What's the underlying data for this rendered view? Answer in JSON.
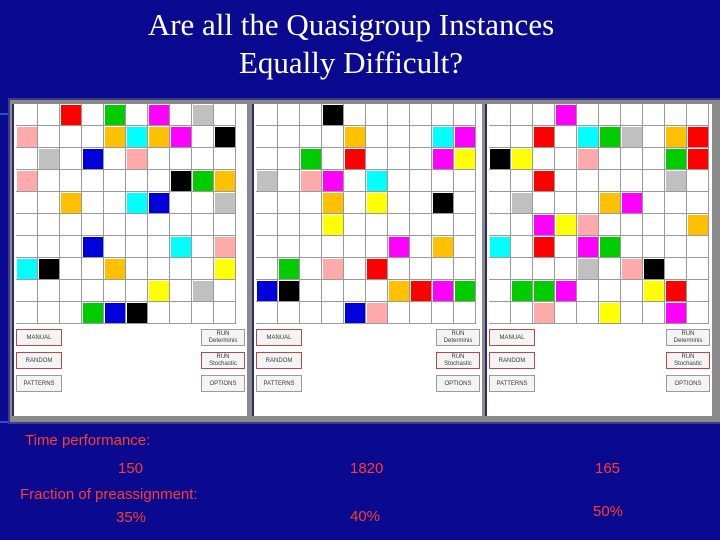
{
  "title": {
    "line1": "Are all the Quasigroup Instances",
    "line2": "Equally Difficult?"
  },
  "panels": [
    {
      "buttons": {
        "manual": "MANUAL",
        "random": "RANDOM",
        "patterns": "PATTERNS",
        "run_det": "RUN\nDeterminis",
        "run_sto": "RUN\nStochastic",
        "options": "OPTIONS"
      },
      "cells": [
        [
          0,
          2,
          "#ff0000"
        ],
        [
          0,
          4,
          "#00cc00"
        ],
        [
          0,
          6,
          "#ff00ff"
        ],
        [
          0,
          8,
          "#c0c0c0"
        ],
        [
          1,
          0,
          "#ffaaaa"
        ],
        [
          1,
          4,
          "#ffc000"
        ],
        [
          1,
          5,
          "#00ffff"
        ],
        [
          1,
          6,
          "#ffc000"
        ],
        [
          1,
          7,
          "#ff00ff"
        ],
        [
          1,
          9,
          "#000000"
        ],
        [
          2,
          1,
          "#c0c0c0"
        ],
        [
          2,
          3,
          "#0000dd"
        ],
        [
          2,
          5,
          "#ffaaaa"
        ],
        [
          3,
          0,
          "#ffaaaa"
        ],
        [
          3,
          7,
          "#000000"
        ],
        [
          3,
          8,
          "#00cc00"
        ],
        [
          3,
          9,
          "#ffc000"
        ],
        [
          4,
          2,
          "#ffc000"
        ],
        [
          4,
          5,
          "#00ffff"
        ],
        [
          4,
          6,
          "#0000dd"
        ],
        [
          4,
          9,
          "#c0c0c0"
        ],
        [
          6,
          3,
          "#0000dd"
        ],
        [
          6,
          7,
          "#00ffff"
        ],
        [
          6,
          9,
          "#ffaaaa"
        ],
        [
          7,
          0,
          "#00ffff"
        ],
        [
          7,
          1,
          "#000000"
        ],
        [
          7,
          4,
          "#ffc000"
        ],
        [
          7,
          9,
          "#ffff00"
        ],
        [
          8,
          6,
          "#ffff00"
        ],
        [
          8,
          8,
          "#c0c0c0"
        ],
        [
          9,
          3,
          "#00cc00"
        ],
        [
          9,
          4,
          "#0000dd"
        ],
        [
          9,
          5,
          "#000000"
        ]
      ]
    },
    {
      "buttons": {
        "manual": "MANUAL",
        "random": "RANDOM",
        "patterns": "PATTERNS",
        "run_det": "RUN\nDeterminis",
        "run_sto": "RUN\nStochastic",
        "options": "OPTIONS"
      },
      "cells": [
        [
          0,
          3,
          "#000000"
        ],
        [
          1,
          4,
          "#ffc000"
        ],
        [
          1,
          8,
          "#00ffff"
        ],
        [
          1,
          9,
          "#ff00ff"
        ],
        [
          2,
          2,
          "#00cc00"
        ],
        [
          2,
          4,
          "#ff0000"
        ],
        [
          2,
          8,
          "#ff00ff"
        ],
        [
          2,
          9,
          "#ffff00"
        ],
        [
          3,
          0,
          "#c0c0c0"
        ],
        [
          3,
          2,
          "#ffaaaa"
        ],
        [
          3,
          3,
          "#ff00ff"
        ],
        [
          3,
          5,
          "#00ffff"
        ],
        [
          4,
          3,
          "#ffc000"
        ],
        [
          4,
          5,
          "#ffff00"
        ],
        [
          4,
          8,
          "#000000"
        ],
        [
          5,
          3,
          "#ffff00"
        ],
        [
          6,
          6,
          "#ff00ff"
        ],
        [
          6,
          8,
          "#ffc000"
        ],
        [
          7,
          1,
          "#00cc00"
        ],
        [
          7,
          3,
          "#ffaaaa"
        ],
        [
          7,
          5,
          "#ff0000"
        ],
        [
          8,
          0,
          "#0000dd"
        ],
        [
          8,
          1,
          "#000000"
        ],
        [
          8,
          6,
          "#ffc000"
        ],
        [
          8,
          7,
          "#ff0000"
        ],
        [
          8,
          8,
          "#ff00ff"
        ],
        [
          8,
          9,
          "#00cc00"
        ],
        [
          9,
          4,
          "#0000dd"
        ],
        [
          9,
          5,
          "#ffaaaa"
        ]
      ]
    },
    {
      "buttons": {
        "manual": "MANUAL",
        "random": "RANDOM",
        "patterns": "PATTERNS",
        "run_det": "RUN\nDeterminis",
        "run_sto": "RUN\nStochastic",
        "options": "OPTIONS"
      },
      "cells": [
        [
          0,
          3,
          "#ff00ff"
        ],
        [
          1,
          2,
          "#ff0000"
        ],
        [
          1,
          4,
          "#00ffff"
        ],
        [
          1,
          5,
          "#00cc00"
        ],
        [
          1,
          6,
          "#c0c0c0"
        ],
        [
          1,
          8,
          "#ffc000"
        ],
        [
          1,
          9,
          "#ff0000"
        ],
        [
          2,
          0,
          "#000000"
        ],
        [
          2,
          1,
          "#ffff00"
        ],
        [
          2,
          4,
          "#ffaaaa"
        ],
        [
          2,
          8,
          "#00cc00"
        ],
        [
          2,
          9,
          "#ff0000"
        ],
        [
          3,
          2,
          "#ff0000"
        ],
        [
          3,
          8,
          "#c0c0c0"
        ],
        [
          4,
          1,
          "#c0c0c0"
        ],
        [
          4,
          5,
          "#ffc000"
        ],
        [
          4,
          6,
          "#ff00ff"
        ],
        [
          5,
          2,
          "#ff00ff"
        ],
        [
          5,
          3,
          "#ffff00"
        ],
        [
          5,
          4,
          "#ffaaaa"
        ],
        [
          5,
          9,
          "#ffc000"
        ],
        [
          6,
          0,
          "#00ffff"
        ],
        [
          6,
          2,
          "#ff0000"
        ],
        [
          6,
          4,
          "#ff00ff"
        ],
        [
          6,
          5,
          "#00cc00"
        ],
        [
          7,
          4,
          "#c0c0c0"
        ],
        [
          7,
          6,
          "#ffaaaa"
        ],
        [
          7,
          7,
          "#000000"
        ],
        [
          8,
          1,
          "#00cc00"
        ],
        [
          8,
          2,
          "#00cc00"
        ],
        [
          8,
          3,
          "#ff00ff"
        ],
        [
          8,
          7,
          "#ffff00"
        ],
        [
          8,
          8,
          "#ff0000"
        ],
        [
          9,
          2,
          "#ffaaaa"
        ],
        [
          9,
          5,
          "#ffff00"
        ],
        [
          9,
          8,
          "#ff00ff"
        ]
      ]
    }
  ],
  "stats": {
    "time_label": "Time performance:",
    "time_values": [
      "150",
      "1820",
      "165"
    ],
    "fraction_label": "Fraction of preassignment:",
    "fraction_values": [
      "35%",
      "40%",
      "50%"
    ]
  }
}
